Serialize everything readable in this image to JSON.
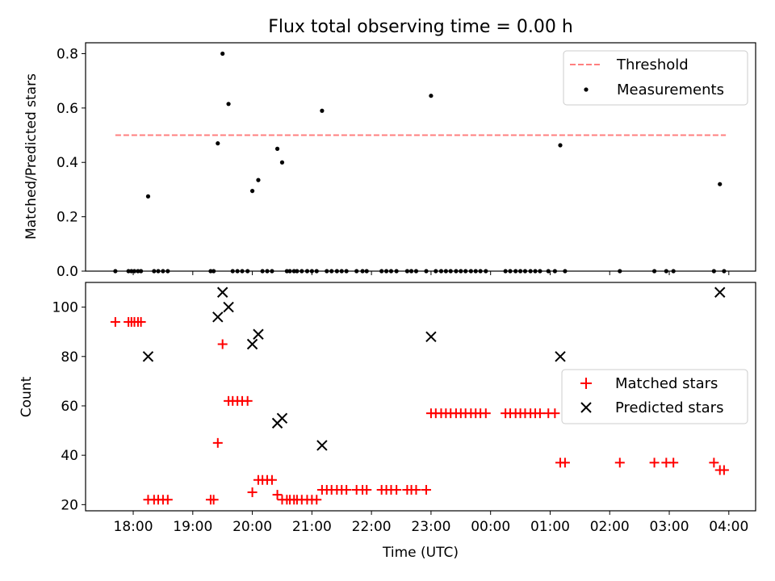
{
  "title": "Flux total observing time = 0.00 h",
  "chart_data": [
    {
      "type": "scatter",
      "ylabel": "Matched/Predicted stars",
      "ylim": [
        0,
        0.84
      ],
      "yticks": [
        0.0,
        0.2,
        0.4,
        0.6,
        0.8
      ],
      "ytick_labels": [
        "0.0",
        "0.2",
        "0.4",
        "0.6",
        "0.8"
      ],
      "legend_position": "top-right",
      "threshold": {
        "name": "Threshold",
        "value": 0.5,
        "x_start": 17.7,
        "x_end": 27.95,
        "color": "#ff7f7f"
      },
      "series": [
        {
          "name": "Measurements",
          "marker": "dot",
          "color": "#000000",
          "x": [
            17.7,
            17.92,
            17.97,
            18.02,
            18.08,
            18.13,
            18.25,
            18.35,
            18.42,
            18.5,
            18.58,
            19.3,
            19.35,
            19.42,
            19.5,
            19.6,
            19.67,
            19.75,
            19.83,
            19.92,
            20.0,
            20.1,
            20.17,
            20.25,
            20.33,
            20.42,
            20.5,
            20.58,
            20.63,
            20.7,
            20.75,
            20.83,
            20.92,
            21.0,
            21.08,
            21.17,
            21.25,
            21.33,
            21.42,
            21.5,
            21.58,
            21.75,
            21.85,
            21.92,
            22.17,
            22.25,
            22.33,
            22.42,
            22.6,
            22.67,
            22.75,
            22.92,
            23.0,
            23.08,
            23.17,
            23.25,
            23.33,
            23.42,
            23.5,
            23.58,
            23.67,
            23.75,
            23.83,
            23.92,
            24.25,
            24.33,
            24.42,
            24.5,
            24.58,
            24.67,
            24.75,
            24.83,
            24.97,
            25.08,
            25.17,
            25.25,
            26.17,
            26.75,
            26.95,
            27.07,
            27.75,
            27.85,
            27.92
          ],
          "y": [
            0,
            0,
            0,
            0,
            0,
            0,
            0.275,
            0,
            0,
            0,
            0,
            0,
            0,
            0.47,
            0.8,
            0.615,
            0,
            0,
            0,
            0,
            0.295,
            0.335,
            0,
            0,
            0,
            0.45,
            0.4,
            0,
            0,
            0,
            0,
            0,
            0,
            0,
            0,
            0.59,
            0,
            0,
            0,
            0,
            0,
            0,
            0,
            0,
            0,
            0,
            0,
            0,
            0,
            0,
            0,
            0,
            0.645,
            0,
            0,
            0,
            0,
            0,
            0,
            0,
            0,
            0,
            0,
            0,
            0,
            0,
            0,
            0,
            0,
            0,
            0,
            0,
            0,
            0,
            0.463,
            0,
            0,
            0,
            0,
            0,
            0,
            0.32,
            0
          ]
        }
      ]
    },
    {
      "type": "scatter",
      "xlabel": "Time (UTC)",
      "ylabel": "Count",
      "ylim": [
        17.5,
        110
      ],
      "yticks": [
        20,
        40,
        60,
        80,
        100
      ],
      "ytick_labels": [
        "20",
        "40",
        "60",
        "80",
        "100"
      ],
      "xlim": [
        17.2,
        28.45
      ],
      "xticks": [
        18,
        19,
        20,
        21,
        22,
        23,
        24,
        25,
        26,
        27,
        28
      ],
      "xtick_labels": [
        "18:00",
        "19:00",
        "20:00",
        "21:00",
        "22:00",
        "23:00",
        "00:00",
        "01:00",
        "02:00",
        "03:00",
        "04:00"
      ],
      "legend_position": "center-right",
      "series": [
        {
          "name": "Matched stars",
          "marker": "plus",
          "color": "#ff0000",
          "x": [
            17.7,
            17.92,
            17.97,
            18.02,
            18.08,
            18.13,
            18.25,
            18.35,
            18.42,
            18.5,
            18.58,
            19.3,
            19.35,
            19.42,
            19.5,
            19.6,
            19.67,
            19.75,
            19.83,
            19.92,
            20.0,
            20.1,
            20.17,
            20.25,
            20.33,
            20.42,
            20.5,
            20.58,
            20.63,
            20.7,
            20.75,
            20.83,
            20.92,
            21.0,
            21.08,
            21.17,
            21.25,
            21.33,
            21.42,
            21.5,
            21.58,
            21.75,
            21.85,
            21.92,
            22.17,
            22.25,
            22.33,
            22.42,
            22.6,
            22.67,
            22.75,
            22.92,
            23.0,
            23.08,
            23.17,
            23.25,
            23.33,
            23.42,
            23.5,
            23.58,
            23.67,
            23.75,
            23.83,
            23.92,
            24.25,
            24.33,
            24.42,
            24.5,
            24.58,
            24.67,
            24.75,
            24.83,
            24.97,
            25.08,
            25.17,
            25.25,
            26.17,
            26.75,
            26.95,
            27.07,
            27.75,
            27.85,
            27.92
          ],
          "y": [
            94,
            94,
            94,
            94,
            94,
            94,
            22,
            22,
            22,
            22,
            22,
            22,
            22,
            45,
            85,
            62,
            62,
            62,
            62,
            62,
            25,
            30,
            30,
            30,
            30,
            24,
            22,
            22,
            22,
            22,
            22,
            22,
            22,
            22,
            22,
            26,
            26,
            26,
            26,
            26,
            26,
            26,
            26,
            26,
            26,
            26,
            26,
            26,
            26,
            26,
            26,
            26,
            57,
            57,
            57,
            57,
            57,
            57,
            57,
            57,
            57,
            57,
            57,
            57,
            57,
            57,
            57,
            57,
            57,
            57,
            57,
            57,
            57,
            57,
            37,
            37,
            37,
            37,
            37,
            37,
            37,
            34,
            34
          ]
        },
        {
          "name": "Predicted stars",
          "marker": "x",
          "color": "#000000",
          "x": [
            18.25,
            19.42,
            19.5,
            19.6,
            20.0,
            20.1,
            20.42,
            20.5,
            21.17,
            23.0,
            25.17,
            27.85
          ],
          "y": [
            80,
            96,
            106,
            100,
            85,
            89,
            53,
            55,
            44,
            88,
            80,
            106
          ]
        }
      ]
    }
  ]
}
